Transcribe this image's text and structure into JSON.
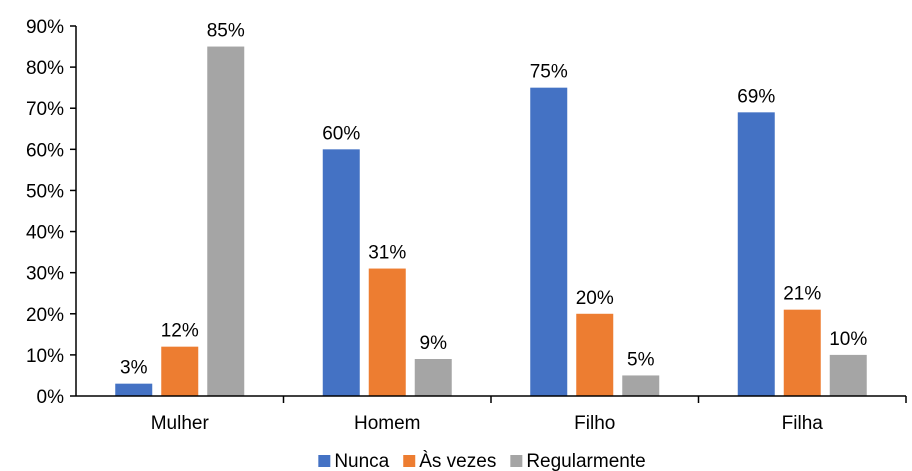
{
  "chart_data": {
    "type": "bar",
    "title": "",
    "xlabel": "",
    "ylabel": "",
    "categories": [
      "Mulher",
      "Homem",
      "Filho",
      "Filha"
    ],
    "series": [
      {
        "name": "Nunca",
        "color": "#4472C4",
        "values": [
          3,
          60,
          75,
          69
        ],
        "labels": [
          "3%",
          "60%",
          "75%",
          "69%"
        ]
      },
      {
        "name": "Às vezes",
        "color": "#ED7D31",
        "values": [
          12,
          31,
          20,
          21
        ],
        "labels": [
          "12%",
          "31%",
          "20%",
          "21%"
        ]
      },
      {
        "name": "Regularmente",
        "color": "#A5A5A5",
        "values": [
          85,
          9,
          5,
          10
        ],
        "labels": [
          "85%",
          "9%",
          "5%",
          "10%"
        ]
      }
    ],
    "ylim": [
      0,
      90
    ],
    "yticks": [
      0,
      10,
      20,
      30,
      40,
      50,
      60,
      70,
      80,
      90
    ],
    "ytick_labels": [
      "0%",
      "10%",
      "20%",
      "30%",
      "40%",
      "50%",
      "60%",
      "70%",
      "80%",
      "90%"
    ],
    "grid": false,
    "legend_position": "bottom"
  }
}
